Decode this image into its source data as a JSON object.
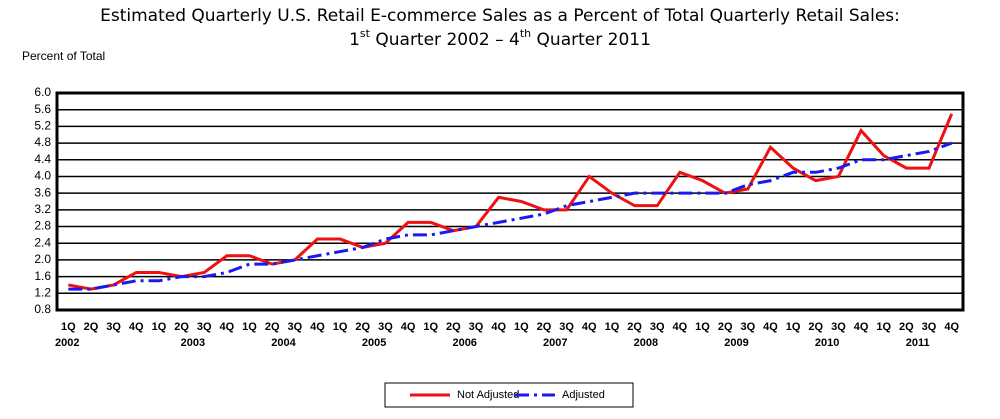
{
  "chart_data": {
    "type": "line",
    "title": "Estimated Quarterly U.S. Retail E-commerce Sales as a Percent of Total Quarterly Retail Sales:",
    "subtitle": [
      {
        "text": "1",
        "sup": false
      },
      {
        "text": "st",
        "sup": true
      },
      {
        "text": " Quarter 2002 – 4",
        "sup": false
      },
      {
        "text": "th",
        "sup": true
      },
      {
        "text": " Quarter 2011",
        "sup": false
      }
    ],
    "y_label": "Percent of Total",
    "categories": [
      "1Q",
      "2Q",
      "3Q",
      "4Q",
      "1Q",
      "2Q",
      "3Q",
      "4Q",
      "1Q",
      "2Q",
      "3Q",
      "4Q",
      "1Q",
      "2Q",
      "3Q",
      "4Q",
      "1Q",
      "2Q",
      "3Q",
      "4Q",
      "1Q",
      "2Q",
      "3Q",
      "4Q",
      "1Q",
      "2Q",
      "3Q",
      "4Q",
      "1Q",
      "2Q",
      "3Q",
      "4Q",
      "1Q",
      "2Q",
      "3Q",
      "4Q",
      "1Q",
      "2Q",
      "3Q",
      "4Q"
    ],
    "groups": [
      "2002",
      "2003",
      "2004",
      "2005",
      "2006",
      "2007",
      "2008",
      "2009",
      "2010",
      "2011"
    ],
    "series": [
      {
        "name": "Not Adjusted",
        "color": "#ee1111",
        "dash": "solid",
        "values": [
          1.4,
          1.3,
          1.4,
          1.7,
          1.7,
          1.6,
          1.7,
          2.1,
          2.1,
          1.9,
          2.0,
          2.5,
          2.5,
          2.3,
          2.4,
          2.9,
          2.9,
          2.7,
          2.8,
          3.5,
          3.4,
          3.2,
          3.2,
          4.0,
          3.6,
          3.3,
          3.3,
          4.1,
          3.9,
          3.6,
          3.7,
          4.7,
          4.2,
          3.9,
          4.0,
          5.1,
          4.5,
          4.2,
          4.2,
          5.5
        ]
      },
      {
        "name": "Adjusted",
        "color": "#1a1aee",
        "dash": "dashdot",
        "values": [
          1.3,
          1.3,
          1.4,
          1.5,
          1.5,
          1.6,
          1.6,
          1.7,
          1.9,
          1.9,
          2.0,
          2.1,
          2.2,
          2.3,
          2.5,
          2.6,
          2.6,
          2.7,
          2.8,
          2.9,
          3.0,
          3.1,
          3.3,
          3.4,
          3.5,
          3.6,
          3.6,
          3.6,
          3.6,
          3.6,
          3.8,
          3.9,
          4.1,
          4.1,
          4.2,
          4.4,
          4.4,
          4.5,
          4.6,
          4.8
        ]
      }
    ],
    "ylim": [
      0.8,
      6
    ],
    "yticks": [
      0.8,
      1.2,
      1.6,
      {
        "value": 2,
        "label": "2.0"
      },
      2.4,
      2.8,
      3.2,
      3.6,
      {
        "value": 4,
        "label": "4.0"
      },
      4.4,
      4.8,
      5.2,
      5.6,
      {
        "value": 6,
        "label": "6.0"
      }
    ],
    "grid": true,
    "legend": "bottom"
  }
}
